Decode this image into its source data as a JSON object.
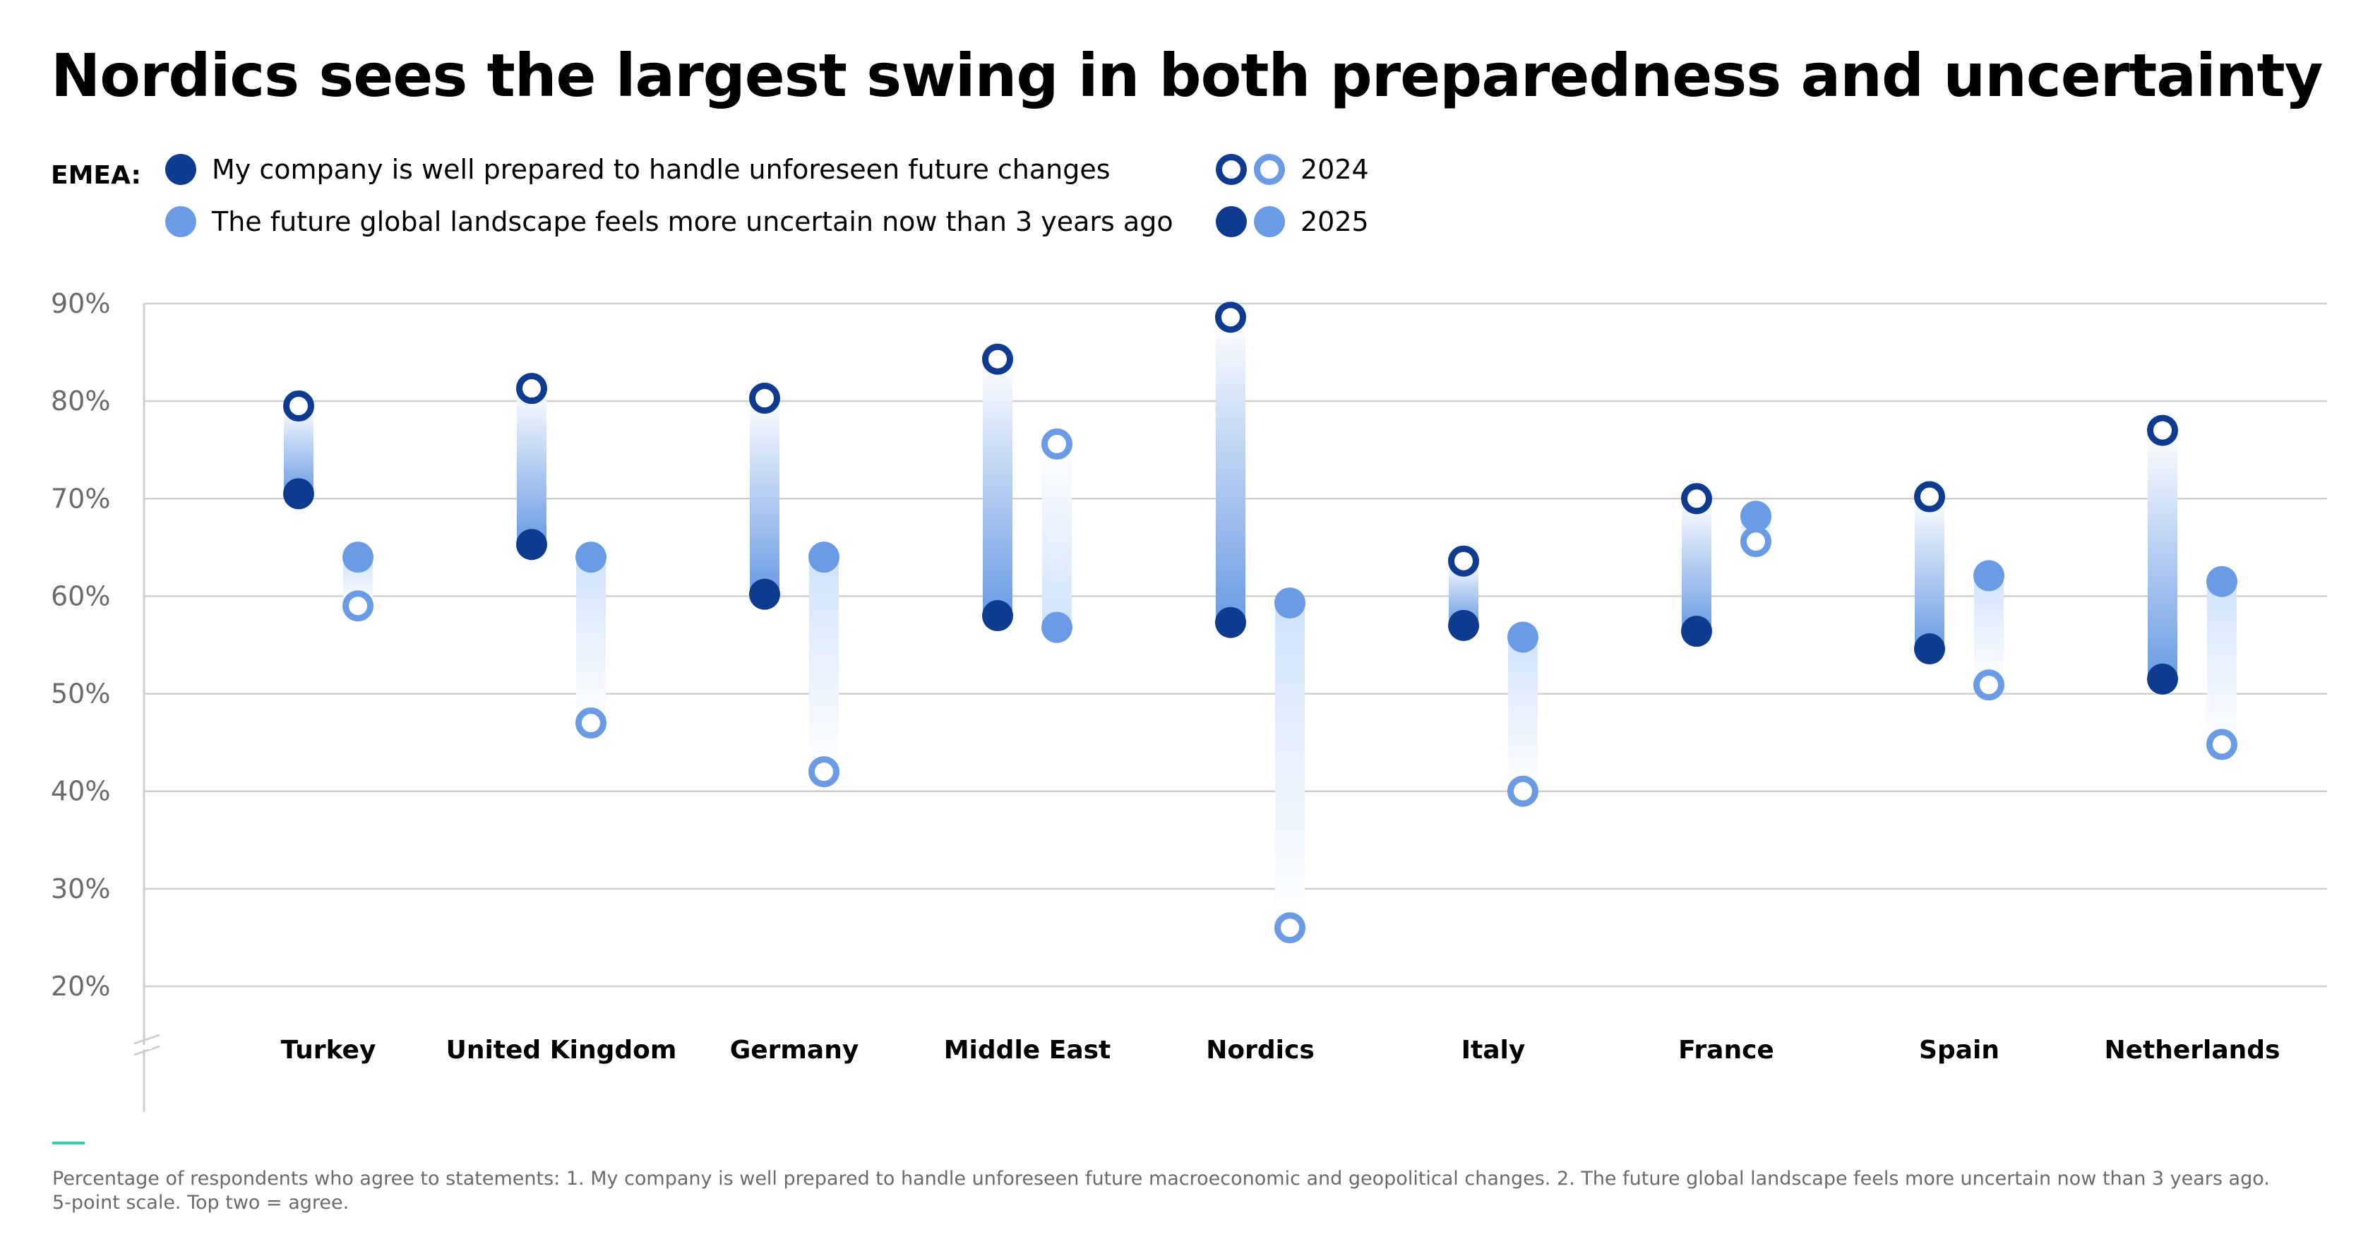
{
  "title": "Nordics sees the largest swing in both preparedness and uncertainty",
  "legend": {
    "region_label": "EMEA:",
    "series": [
      {
        "key": "prepared",
        "label": "My company is well prepared to handle unforeseen future changes",
        "color": "#0e3b8f"
      },
      {
        "key": "uncertain",
        "label": "The future global landscape feels more uncertain now than 3 years ago",
        "color": "#6a9be4"
      }
    ],
    "years": [
      {
        "year": "2024",
        "style": "hollow"
      },
      {
        "year": "2025",
        "style": "filled"
      }
    ]
  },
  "chart_data": {
    "type": "dumbbell",
    "title": "Nordics sees the largest swing in both preparedness and uncertainty",
    "xlabel": "",
    "ylabel": "",
    "ylim": [
      20,
      90
    ],
    "yticks": [
      "90%",
      "80%",
      "70%",
      "60%",
      "50%",
      "40%",
      "30%",
      "20%"
    ],
    "ytick_values": [
      90,
      80,
      70,
      60,
      50,
      40,
      30,
      20
    ],
    "grid": true,
    "axis_break": true,
    "legend_position": "top-left",
    "categories": [
      "Turkey",
      "United Kingdom",
      "Germany",
      "Middle East",
      "Nordics",
      "Italy",
      "France",
      "Spain",
      "Netherlands"
    ],
    "series": [
      {
        "name": "My company is well prepared to handle unforeseen future changes",
        "key": "prepared",
        "color": "#0e3b8f",
        "values_2024": [
          79.5,
          81.3,
          80.3,
          84.3,
          88.6,
          63.6,
          70.0,
          70.2,
          77.0
        ],
        "values_2025": [
          70.5,
          65.3,
          60.2,
          58.0,
          57.3,
          57.0,
          56.4,
          54.6,
          51.5
        ]
      },
      {
        "name": "The future global landscape feels more uncertain now than 3 years ago",
        "key": "uncertain",
        "color": "#6a9be4",
        "values_2024": [
          59.0,
          47.0,
          42.0,
          75.6,
          26.0,
          40.0,
          65.6,
          50.9,
          44.8
        ],
        "values_2025": [
          64.0,
          64.0,
          64.0,
          56.8,
          59.3,
          55.8,
          68.2,
          62.1,
          61.5
        ]
      }
    ]
  },
  "footnote": {
    "line1": "Percentage of respondents who agree to statements: 1. My company is well prepared to handle unforeseen future macroeconomic and geopolitical changes. 2. The future global landscape feels more uncertain now than 3 years ago.",
    "line2": "5-point scale. Top two = agree."
  },
  "colors": {
    "accent": "#2ed3b7",
    "grid": "#cfcfcf",
    "axis_text": "#6b6b6b"
  }
}
